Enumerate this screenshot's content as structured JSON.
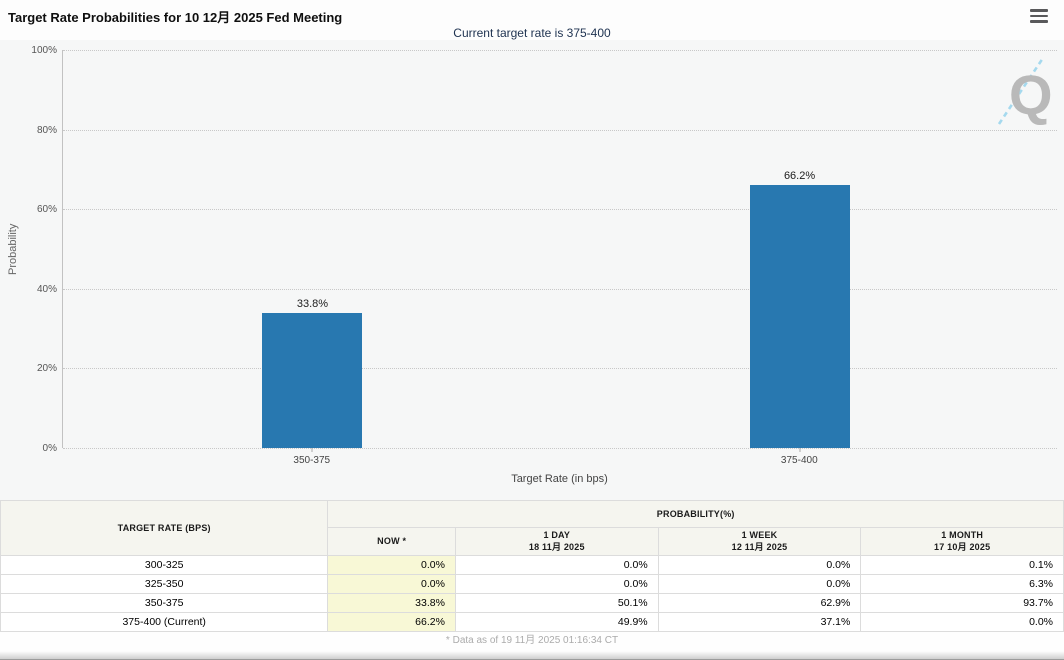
{
  "header": {
    "title": "Target Rate Probabilities for 10 12月 2025 Fed Meeting",
    "subtitle": "Current target rate is 375-400",
    "menu_icon": "hamburger-menu-icon"
  },
  "chart_data": {
    "type": "bar",
    "title": "Target Rate Probabilities for 10 12月 2025 Fed Meeting",
    "categories": [
      "350-375",
      "375-400"
    ],
    "values": [
      33.8,
      66.2
    ],
    "bar_labels": [
      "33.8%",
      "66.2%"
    ],
    "xlabel": "Target Rate (in bps)",
    "ylabel": "Probability",
    "ylim": [
      0,
      100
    ],
    "yticks": [
      "100%",
      "80%",
      "60%",
      "40%",
      "20%",
      "0%"
    ],
    "grid": "horizontal dotted",
    "legend": "none",
    "bar_color": "#2878b0",
    "watermark": "Q"
  },
  "table": {
    "col1_header": "TARGET RATE (BPS)",
    "group_header": "PROBABILITY(%)",
    "columns": [
      {
        "label": "NOW *",
        "sub": ""
      },
      {
        "label": "1 DAY",
        "sub": "18 11月 2025"
      },
      {
        "label": "1 WEEK",
        "sub": "12 11月 2025"
      },
      {
        "label": "1 MONTH",
        "sub": "17 10月 2025"
      }
    ],
    "now_highlight_color": "#f8f8d6",
    "rows": [
      {
        "rate": "300-325",
        "now": "0.0%",
        "day": "0.0%",
        "week": "0.0%",
        "month": "0.1%"
      },
      {
        "rate": "325-350",
        "now": "0.0%",
        "day": "0.0%",
        "week": "0.0%",
        "month": "6.3%"
      },
      {
        "rate": "350-375",
        "now": "33.8%",
        "day": "50.1%",
        "week": "62.9%",
        "month": "93.7%"
      },
      {
        "rate": "375-400 (Current)",
        "now": "66.2%",
        "day": "49.9%",
        "week": "37.1%",
        "month": "0.0%"
      }
    ]
  },
  "footer": {
    "note": "* Data as of 19 11月 2025 01:16:34 CT"
  }
}
